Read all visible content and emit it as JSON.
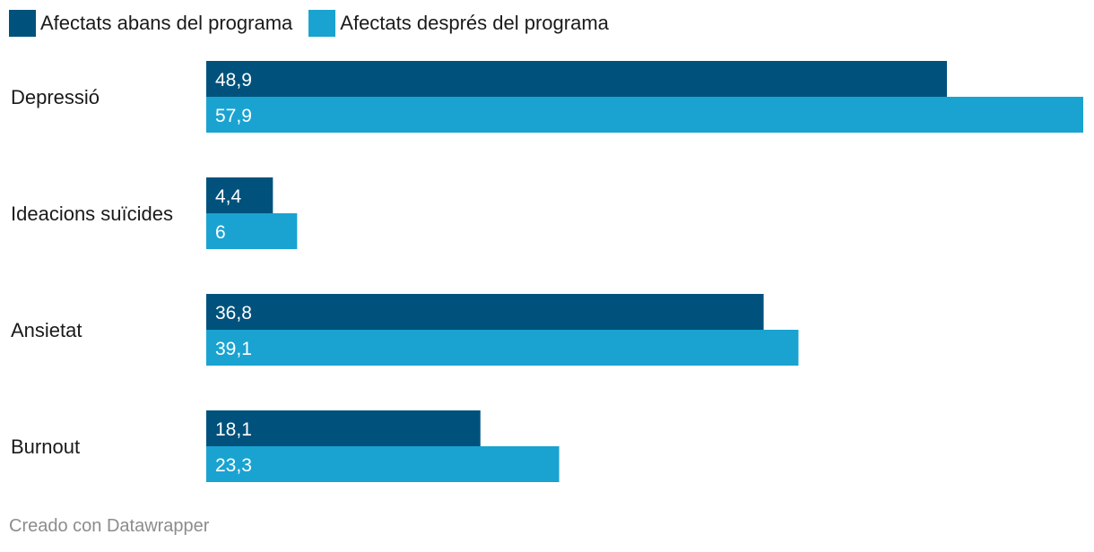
{
  "legend": [
    {
      "label": "Afectats abans del programa",
      "color": "#00527c"
    },
    {
      "label": "Afectats després del programa",
      "color": "#1aa3d1"
    }
  ],
  "chart_data": {
    "type": "bar",
    "orientation": "horizontal",
    "categories": [
      "Depressió",
      "Ideacions suïcides",
      "Ansietat",
      "Burnout"
    ],
    "series": [
      {
        "name": "Afectats abans del programa",
        "color": "#00527c",
        "values": [
          48.9,
          4.4,
          36.8,
          18.1
        ]
      },
      {
        "name": "Afectats després del programa",
        "color": "#1aa3d1",
        "values": [
          57.9,
          6,
          39.1,
          23.3
        ]
      }
    ],
    "value_labels": [
      [
        "48,9",
        "4,4",
        "36,8",
        "18,1"
      ],
      [
        "57,9",
        "6",
        "39,1",
        "23,3"
      ]
    ],
    "xlim": [
      0,
      57.9
    ],
    "grid": false,
    "legend_position": "top-left"
  },
  "footer": {
    "credit": "Creado con Datawrapper"
  }
}
